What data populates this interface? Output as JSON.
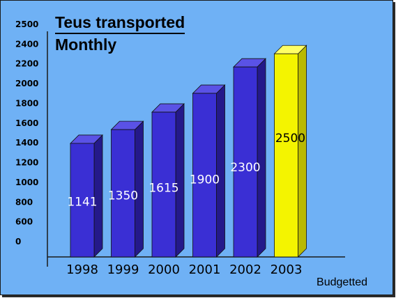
{
  "chart_data": {
    "type": "bar",
    "title": "Teus transported",
    "subtitle": "Monthly",
    "categories": [
      "1998",
      "1999",
      "2000",
      "2001",
      "2002",
      "2003"
    ],
    "values": [
      1141,
      1350,
      1615,
      1900,
      2300,
      2500
    ],
    "data_labels": [
      "1141",
      "1350",
      "1615",
      "1900",
      "2300",
      "2500"
    ],
    "y_tick_labels": [
      "0",
      "600",
      "800",
      "1000",
      "1200",
      "1400",
      "1600",
      "1800",
      "2000",
      "2200",
      "2400",
      "2500"
    ],
    "xlabel": "",
    "ylabel": "",
    "grid": false,
    "legend": "none",
    "bar_style": "3d",
    "colors": {
      "background": "#6fb1f5",
      "bar_front": "#3a2fd4",
      "bar_side": "#24198a",
      "bar_top": "#5a52e6",
      "highlight_front": "#f4f400",
      "highlight_side": "#b9b900",
      "highlight_top": "#ffff66",
      "label_light": "#ffffff",
      "label_dark": "#000000"
    },
    "highlight_category": "2003",
    "annotations": [
      "Budgetted"
    ]
  }
}
